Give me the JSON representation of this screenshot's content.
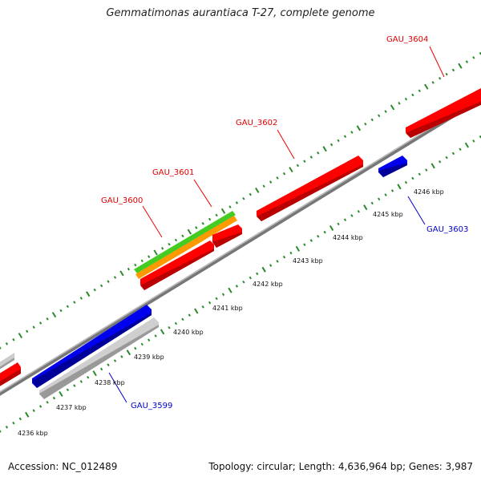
{
  "title": "Gemmatimonas aurantiaca T-27, complete genome",
  "footer": {
    "accession": "Accession: NC_012489",
    "topology": "Topology: circular; Length: 4,636,964 bp; Genes: 3,987"
  },
  "colors": {
    "backbone": "#888888",
    "tick": "#2a8a2a",
    "plus_gene": "#ff0000",
    "minus_gene": "#0000ee",
    "gray_feature": "#cccccc",
    "green_feature": "#44cc22",
    "orange_feature": "#ff9900"
  },
  "kbp_labels": [
    "4236 kbp",
    "4237 kbp",
    "4238 kbp",
    "4239 kbp",
    "4240 kbp",
    "4241 kbp",
    "4242 kbp",
    "4243 kbp",
    "4244 kbp",
    "4245 kbp",
    "4246 kbp"
  ],
  "gene_labels": [
    {
      "text": "GAU_3604",
      "strand": "plus"
    },
    {
      "text": "GAU_3602",
      "strand": "plus"
    },
    {
      "text": "GAU_3601",
      "strand": "plus"
    },
    {
      "text": "GAU_3600",
      "strand": "plus"
    },
    {
      "text": "GAU_3603",
      "strand": "minus"
    },
    {
      "text": "GAU_3599",
      "strand": "minus"
    }
  ]
}
